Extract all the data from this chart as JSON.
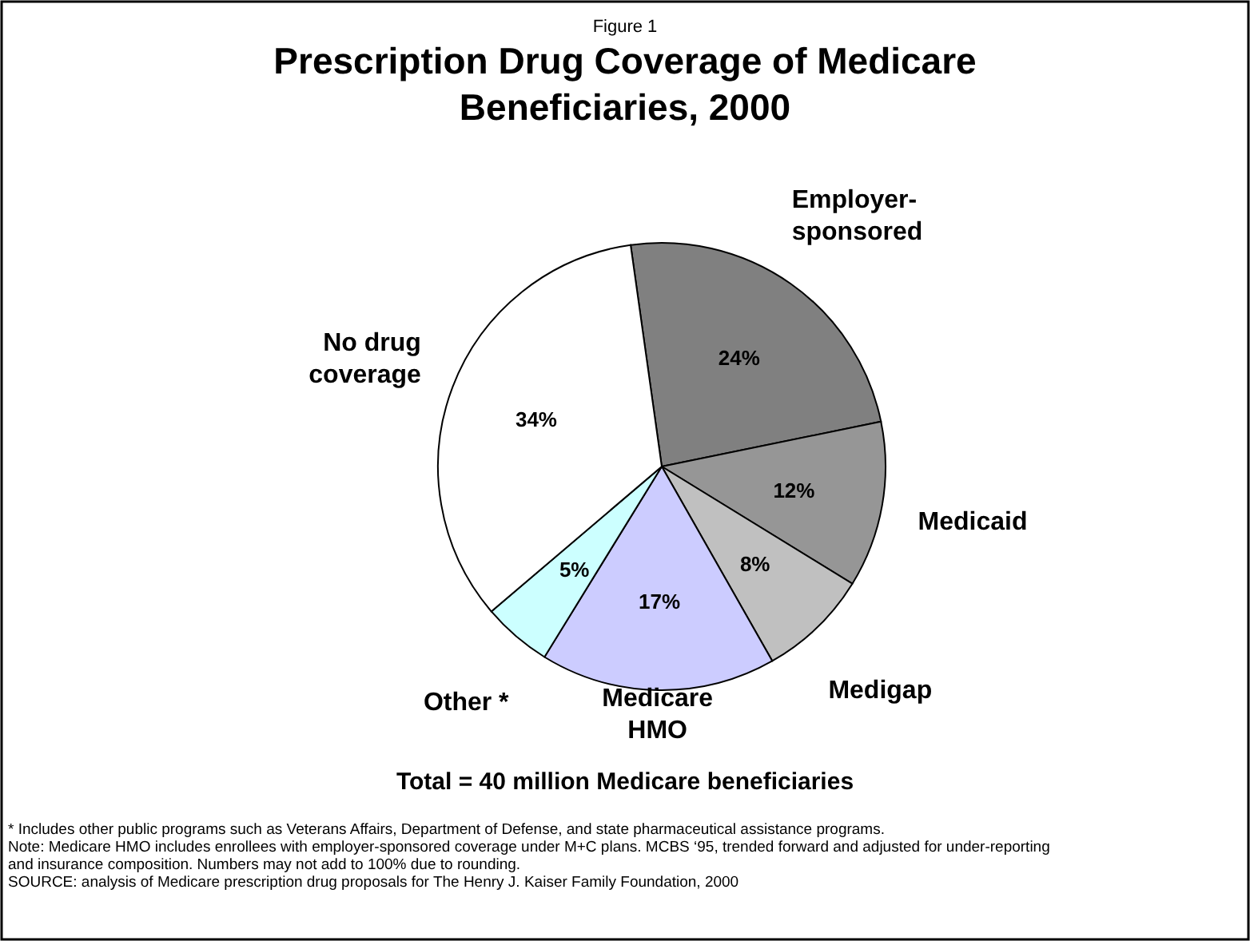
{
  "chart_data": {
    "type": "pie",
    "subtitle": "Figure 1",
    "title": "Prescription Drug Coverage of Medicare Beneficiaries, 2000",
    "categories": [
      "Employer-sponsored",
      "Medicaid",
      "Medigap",
      "Medicare HMO",
      "Other *",
      "No drug coverage"
    ],
    "values": [
      24,
      12,
      8,
      17,
      5,
      34
    ],
    "colors": [
      "#808080",
      "#969696",
      "#c0c0c0",
      "#ccccff",
      "#ccffff",
      "#ffffff"
    ],
    "value_labels": [
      "24%",
      "12%",
      "8%",
      "17%",
      "5%",
      "34%"
    ],
    "legend": false,
    "annotations": [
      "Total = 40 million Medicare beneficiaries",
      "* Includes other public programs such as Veterans Affairs, Department of Defense, and state pharmaceutical assistance programs.",
      "Note: Medicare HMO includes enrollees with employer-sponsored coverage under M+C plans.  MCBS ‘95, trended forward and adjusted for under-reporting and insurance composition.  Numbers may not add to 100% due to rounding.",
      "SOURCE: analysis of Medicare prescription drug proposals for The Henry J. Kaiser Family Foundation, 2000"
    ]
  }
}
